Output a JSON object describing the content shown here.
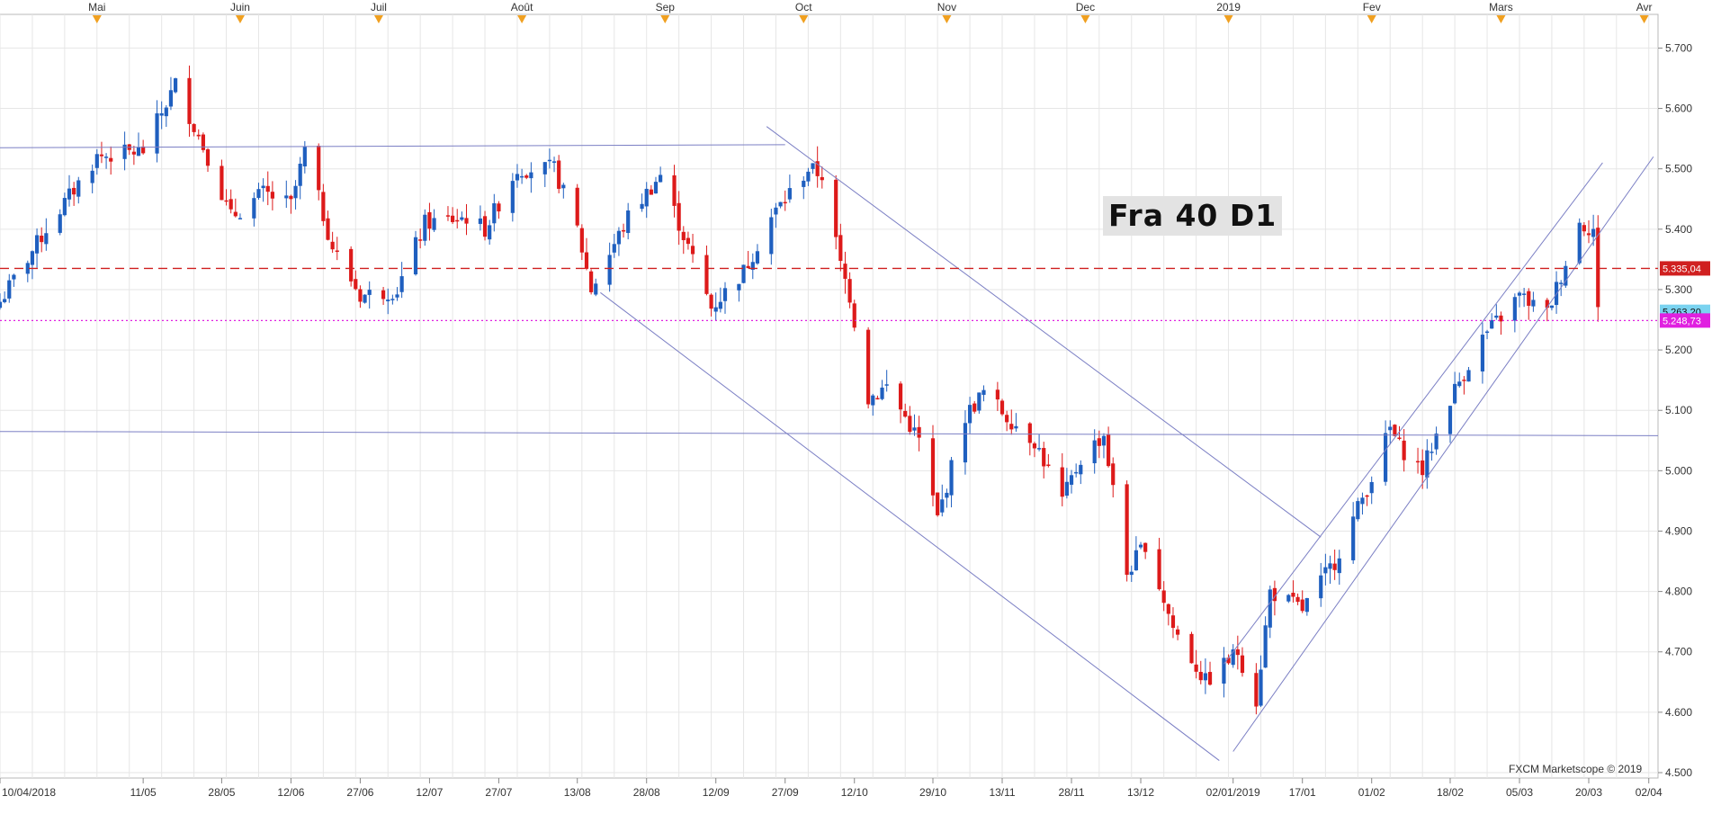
{
  "instrument_label": "Fra 40 D1",
  "watermark": "FXCM Marketscope © 2019",
  "colors": {
    "bull": "#1f5fbf",
    "bear": "#dd1a1a",
    "grid": "#e6e6e6",
    "trendline": "#7b7fc4",
    "resistance": "#d02020",
    "current": "#e020e0",
    "last_price": "#7ad3f0"
  },
  "chart_data": {
    "type": "candlestick",
    "title": "Fra 40 D1",
    "ylim": [
      4500,
      5720
    ],
    "y_ticks": [
      "5.700",
      "5.600",
      "5.500",
      "5.400",
      "5.300",
      "5.200",
      "5.100",
      "5.000",
      "4.900",
      "4.800",
      "4.700",
      "4.600",
      "4.500"
    ],
    "y_tick_values": [
      5700,
      5600,
      5500,
      5400,
      5300,
      5200,
      5100,
      5000,
      4900,
      4800,
      4700,
      4600,
      4500
    ],
    "x_start": "2018-04-10",
    "x_end": "2019-04-04",
    "top_axis": [
      {
        "label": "Mai",
        "date": "2018-05-01"
      },
      {
        "label": "Juin",
        "date": "2018-06-01"
      },
      {
        "label": "Juil",
        "date": "2018-07-01"
      },
      {
        "label": "Août",
        "date": "2018-08-01"
      },
      {
        "label": "Sep",
        "date": "2018-09-01"
      },
      {
        "label": "Oct",
        "date": "2018-10-01"
      },
      {
        "label": "Nov",
        "date": "2018-11-01"
      },
      {
        "label": "Dec",
        "date": "2018-12-01"
      },
      {
        "label": "2019",
        "date": "2019-01-01"
      },
      {
        "label": "Fev",
        "date": "2019-02-01"
      },
      {
        "label": "Mars",
        "date": "2019-03-01"
      },
      {
        "label": "Avr",
        "date": "2019-04-01"
      }
    ],
    "bottom_axis": [
      {
        "label": "10/04/2018",
        "date": "2018-04-10"
      },
      {
        "label": "11/05",
        "date": "2018-05-11"
      },
      {
        "label": "28/05",
        "date": "2018-05-28"
      },
      {
        "label": "12/06",
        "date": "2018-06-12"
      },
      {
        "label": "27/06",
        "date": "2018-06-27"
      },
      {
        "label": "12/07",
        "date": "2018-07-12"
      },
      {
        "label": "27/07",
        "date": "2018-07-27"
      },
      {
        "label": "13/08",
        "date": "2018-08-13"
      },
      {
        "label": "28/08",
        "date": "2018-08-28"
      },
      {
        "label": "12/09",
        "date": "2018-09-12"
      },
      {
        "label": "27/09",
        "date": "2018-09-27"
      },
      {
        "label": "12/10",
        "date": "2018-10-12"
      },
      {
        "label": "29/10",
        "date": "2018-10-29"
      },
      {
        "label": "13/11",
        "date": "2018-11-13"
      },
      {
        "label": "28/11",
        "date": "2018-11-28"
      },
      {
        "label": "13/12",
        "date": "2018-12-13"
      },
      {
        "label": "02/01/2019",
        "date": "2019-01-02"
      },
      {
        "label": "17/01",
        "date": "2019-01-17"
      },
      {
        "label": "01/02",
        "date": "2019-02-01"
      },
      {
        "label": "18/02",
        "date": "2019-02-18"
      },
      {
        "label": "05/03",
        "date": "2019-03-05"
      },
      {
        "label": "20/03",
        "date": "2019-03-20"
      },
      {
        "label": "02/04",
        "date": "2019-04-02"
      }
    ],
    "anchors": [
      [
        "2018-04-10",
        5280
      ],
      [
        "2018-04-20",
        5400
      ],
      [
        "2018-05-01",
        5520
      ],
      [
        "2018-05-11",
        5530
      ],
      [
        "2018-05-18",
        5640
      ],
      [
        "2018-05-25",
        5520
      ],
      [
        "2018-05-30",
        5420
      ],
      [
        "2018-06-06",
        5460
      ],
      [
        "2018-06-12",
        5440
      ],
      [
        "2018-06-15",
        5530
      ],
      [
        "2018-06-21",
        5370
      ],
      [
        "2018-06-27",
        5290
      ],
      [
        "2018-07-05",
        5300
      ],
      [
        "2018-07-11",
        5410
      ],
      [
        "2018-07-20",
        5420
      ],
      [
        "2018-07-24",
        5400
      ],
      [
        "2018-07-31",
        5500
      ],
      [
        "2018-08-08",
        5500
      ],
      [
        "2018-08-13",
        5400
      ],
      [
        "2018-08-16",
        5300
      ],
      [
        "2018-08-24",
        5420
      ],
      [
        "2018-08-31",
        5490
      ],
      [
        "2018-09-05",
        5390
      ],
      [
        "2018-09-11",
        5270
      ],
      [
        "2018-09-18",
        5330
      ],
      [
        "2018-09-24",
        5420
      ],
      [
        "2018-10-02",
        5500
      ],
      [
        "2018-10-05",
        5490
      ],
      [
        "2018-10-09",
        5340
      ],
      [
        "2018-10-11",
        5290
      ],
      [
        "2018-10-15",
        5120
      ],
      [
        "2018-10-19",
        5140
      ],
      [
        "2018-10-26",
        5050
      ],
      [
        "2018-10-30",
        4920
      ],
      [
        "2018-11-05",
        5090
      ],
      [
        "2018-11-09",
        5130
      ],
      [
        "2018-11-14",
        5090
      ],
      [
        "2018-11-20",
        5050
      ],
      [
        "2018-11-26",
        4950
      ],
      [
        "2018-11-30",
        5020
      ],
      [
        "2018-12-05",
        5060
      ],
      [
        "2018-12-10",
        4830
      ],
      [
        "2018-12-14",
        4880
      ],
      [
        "2018-12-20",
        4740
      ],
      [
        "2018-12-27",
        4650
      ],
      [
        "2019-01-03",
        4700
      ],
      [
        "2019-01-07",
        4620
      ],
      [
        "2019-01-10",
        4800
      ],
      [
        "2019-01-17",
        4770
      ],
      [
        "2019-01-24",
        4850
      ],
      [
        "2019-02-01",
        4990
      ],
      [
        "2019-02-05",
        5070
      ],
      [
        "2019-02-07",
        5040
      ],
      [
        "2019-02-12",
        5000
      ],
      [
        "2019-02-18",
        5120
      ],
      [
        "2019-02-25",
        5220
      ],
      [
        "2019-03-05",
        5290
      ],
      [
        "2019-03-11",
        5260
      ],
      [
        "2019-03-18",
        5410
      ],
      [
        "2019-03-21",
        5400
      ],
      [
        "2019-03-22",
        5263
      ]
    ],
    "price_lines": [
      {
        "label": "5.335,04",
        "value": 5335.04,
        "style": "dashed"
      },
      {
        "label": "5.263,20",
        "value": 5263.2,
        "style": "last"
      },
      {
        "label": "5.248,73",
        "value": 5248.73,
        "style": "dotted"
      }
    ],
    "trendlines": [
      {
        "points": [
          [
            "2018-04-10",
            5535
          ],
          [
            "2018-09-27",
            5540
          ]
        ]
      },
      {
        "points": [
          [
            "2018-04-10",
            5065
          ],
          [
            "2019-04-04",
            5058
          ]
        ]
      },
      {
        "points": [
          [
            "2018-09-23",
            5570
          ],
          [
            "2019-01-21",
            4890
          ]
        ]
      },
      {
        "points": [
          [
            "2018-08-18",
            5295
          ],
          [
            "2018-12-30",
            4520
          ]
        ]
      },
      {
        "points": [
          [
            "2018-12-31",
            4680
          ],
          [
            "2019-03-23",
            5510
          ]
        ]
      },
      {
        "points": [
          [
            "2019-01-02",
            4535
          ],
          [
            "2019-04-03",
            5520
          ]
        ]
      }
    ],
    "grid": true
  }
}
